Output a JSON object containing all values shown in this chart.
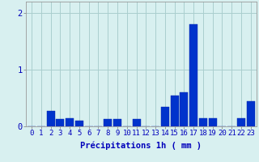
{
  "hours": [
    0,
    1,
    2,
    3,
    4,
    5,
    6,
    7,
    8,
    9,
    10,
    11,
    12,
    13,
    14,
    15,
    16,
    17,
    18,
    19,
    20,
    21,
    22,
    23
  ],
  "values": [
    0,
    0,
    0.27,
    0.13,
    0.15,
    0.1,
    0,
    0,
    0.13,
    0.13,
    0,
    0.13,
    0,
    0,
    0.35,
    0.55,
    0.6,
    1.8,
    0.15,
    0.15,
    0,
    0,
    0.15,
    0.45
  ],
  "bar_color": "#0033cc",
  "bar_edge_color": "#0022aa",
  "background_color": "#d8f0f0",
  "grid_color": "#aacece",
  "text_color": "#0000bb",
  "xlabel": "Précipitations 1h ( mm )",
  "ylim": [
    0,
    2.2
  ],
  "yticks": [
    0,
    1,
    2
  ],
  "tick_fontsize": 6.5,
  "xlabel_fontsize": 7.5
}
